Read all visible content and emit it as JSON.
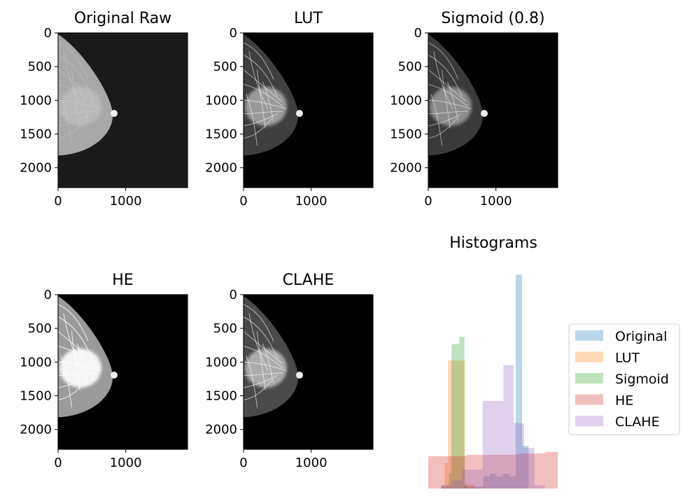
{
  "chart_data": [
    {
      "type": "image",
      "title": "Original Raw",
      "x_ticks": [
        "0",
        "1000"
      ],
      "y_ticks": [
        "0",
        "500",
        "1000",
        "1500",
        "2000"
      ],
      "image_size": [
        1914,
        2294
      ],
      "background": "#1a1a1a",
      "tissue_tone": "#a8a8a8"
    },
    {
      "type": "image",
      "title": "LUT",
      "x_ticks": [
        "0",
        "1000"
      ],
      "y_ticks": [
        "0",
        "500",
        "1000",
        "1500",
        "2000"
      ],
      "image_size": [
        1914,
        2294
      ],
      "background": "#000000",
      "tissue_tone": "#3f3f3f"
    },
    {
      "type": "image",
      "title": "Sigmoid (0.8)",
      "x_ticks": [
        "0",
        "1000"
      ],
      "y_ticks": [
        "0",
        "500",
        "1000",
        "1500",
        "2000"
      ],
      "image_size": [
        1914,
        2294
      ],
      "background": "#000000",
      "tissue_tone": "#3a3a3a"
    },
    {
      "type": "image",
      "title": "HE",
      "x_ticks": [
        "0",
        "1000"
      ],
      "y_ticks": [
        "0",
        "500",
        "1000",
        "1500",
        "2000"
      ],
      "image_size": [
        1914,
        2294
      ],
      "background": "#000000",
      "tissue_tone": "#9a9a9a"
    },
    {
      "type": "image",
      "title": "CLAHE",
      "x_ticks": [
        "0",
        "1000"
      ],
      "y_ticks": [
        "0",
        "500",
        "1000",
        "1500",
        "2000"
      ],
      "image_size": [
        1914,
        2294
      ],
      "background": "#000000",
      "tissue_tone": "#4a4a4a"
    },
    {
      "type": "histogram",
      "title": "Histograms",
      "axes_visible": false,
      "legend_position": "right",
      "alpha": 0.3,
      "bins": 10,
      "ylim": [
        0,
        330
      ],
      "series": [
        {
          "name": "Original",
          "color": "#1f77b4",
          "range": [
            0.275,
            0.775
          ],
          "counts": [
            4,
            3,
            3,
            18,
            22,
            18,
            22,
            18,
            317,
            63
          ]
        },
        {
          "name": "LUT",
          "color": "#ff7f0e",
          "range": [
            0.1,
            0.36
          ],
          "counts": [
            5,
            38,
            190,
            190,
            190,
            190,
            190,
            8,
            6,
            6
          ]
        },
        {
          "name": "Sigmoid",
          "color": "#2ca02c",
          "range": [
            0.1,
            0.3
          ],
          "counts": [
            3,
            3,
            5,
            22,
            214,
            214,
            214,
            225,
            225,
            4
          ]
        },
        {
          "name": "HE",
          "color": "#d62728",
          "range": [
            0.0,
            1.0
          ],
          "counts": [
            48,
            48,
            48,
            50,
            50,
            50,
            50,
            52,
            52,
            54
          ]
        },
        {
          "name": "CLAHE",
          "color": "#9467bd",
          "range": [
            0.1,
            0.9
          ],
          "counts": [
            5,
            12,
            28,
            28,
            130,
            130,
            183,
            97,
            60,
            5
          ]
        }
      ]
    }
  ]
}
